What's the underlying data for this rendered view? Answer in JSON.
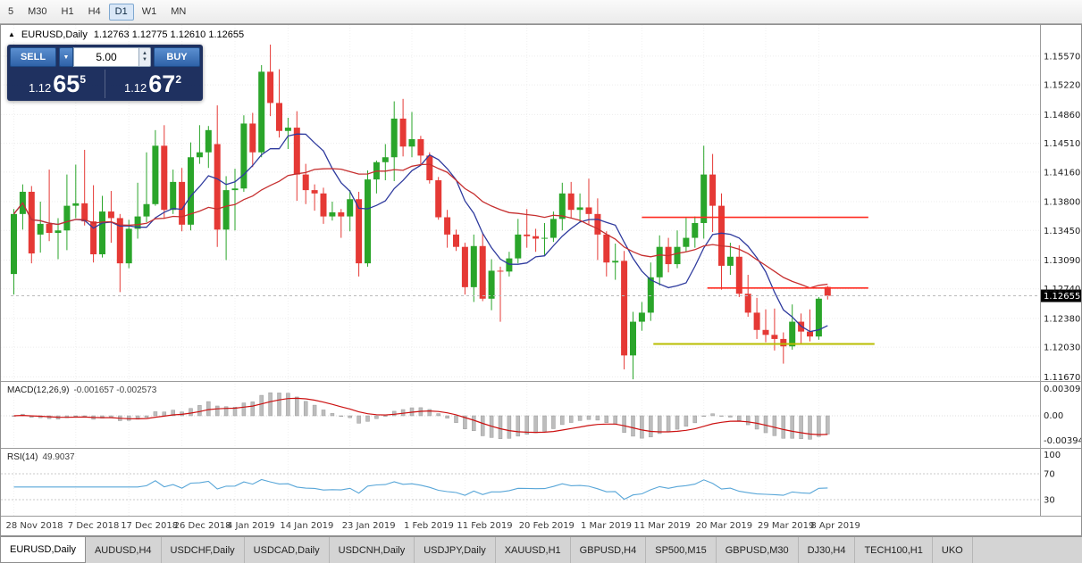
{
  "toolbar": {
    "timeframes": [
      {
        "label": "5",
        "active": false
      },
      {
        "label": "M30",
        "active": false
      },
      {
        "label": "H1",
        "active": false
      },
      {
        "label": "H4",
        "active": false
      },
      {
        "label": "D1",
        "active": true
      },
      {
        "label": "W1",
        "active": false
      },
      {
        "label": "MN",
        "active": false
      }
    ]
  },
  "icons": {
    "symbol_arrow": "▲",
    "volume_dropdown": "▼",
    "stepper_up": "▲",
    "stepper_down": "▼"
  },
  "trade_panel": {
    "sell_label": "SELL",
    "buy_label": "BUY",
    "volume": "5.00",
    "sell_small": "1.12",
    "sell_big": "65",
    "sell_sup": "5",
    "buy_small": "1.12",
    "buy_big": "67",
    "buy_sup": "2"
  },
  "chart_data": {
    "type": "candlestick",
    "symbol": "EURUSD",
    "timeframe": "Daily",
    "header": {
      "symbol": "EURUSD,Daily",
      "ohlc": "1.12763 1.12775 1.12610 1.12655"
    },
    "y_range": {
      "min": 1.1163,
      "max": 1.1584
    },
    "colors": {
      "up": "#2aa52a",
      "down": "#e53935"
    },
    "y_axis_labels": [
      "1.15570",
      "1.15220",
      "1.14860",
      "1.14510",
      "1.14160",
      "1.13800",
      "1.13450",
      "1.13090",
      "1.12740",
      "1.12380",
      "1.12030",
      "1.11670"
    ],
    "x_labels": [
      {
        "label": "28 Nov 2018",
        "i": 0
      },
      {
        "label": "7 Dec 2018",
        "i": 7
      },
      {
        "label": "17 Dec 2018",
        "i": 13
      },
      {
        "label": "26 Dec 2018",
        "i": 19
      },
      {
        "label": "4 Jan 2019",
        "i": 25
      },
      {
        "label": "14 Jan 2019",
        "i": 31
      },
      {
        "label": "23 Jan 2019",
        "i": 38
      },
      {
        "label": "1 Feb 2019",
        "i": 45
      },
      {
        "label": "11 Feb 2019",
        "i": 51
      },
      {
        "label": "20 Feb 2019",
        "i": 58
      },
      {
        "label": "1 Mar 2019",
        "i": 65
      },
      {
        "label": "11 Mar 2019",
        "i": 71
      },
      {
        "label": "20 Mar 2019",
        "i": 78
      },
      {
        "label": "29 Mar 2019",
        "i": 85
      },
      {
        "label": "8 Apr 2019",
        "i": 91
      }
    ],
    "candles": [
      [
        1.1292,
        1.1371,
        1.1267,
        1.1365
      ],
      [
        1.1365,
        1.1401,
        1.1346,
        1.1392
      ],
      [
        1.1392,
        1.1399,
        1.1305,
        1.1317
      ],
      [
        1.134,
        1.138,
        1.1318,
        1.1353
      ],
      [
        1.1353,
        1.1419,
        1.1332,
        1.1342
      ],
      [
        1.1342,
        1.136,
        1.131,
        1.1345
      ],
      [
        1.1345,
        1.1413,
        1.1321,
        1.1375
      ],
      [
        1.1375,
        1.1425,
        1.136,
        1.1378
      ],
      [
        1.1378,
        1.1443,
        1.1351,
        1.1356
      ],
      [
        1.1356,
        1.14,
        1.1306,
        1.1316
      ],
      [
        1.1316,
        1.1387,
        1.1312,
        1.1368
      ],
      [
        1.1368,
        1.1393,
        1.133,
        1.136
      ],
      [
        1.136,
        1.1365,
        1.127,
        1.1305
      ],
      [
        1.1305,
        1.1358,
        1.1299,
        1.1347
      ],
      [
        1.1347,
        1.1403,
        1.1335,
        1.1362
      ],
      [
        1.1362,
        1.144,
        1.1355,
        1.1377
      ],
      [
        1.1377,
        1.1467,
        1.1375,
        1.1448
      ],
      [
        1.1448,
        1.1473,
        1.1359,
        1.137
      ],
      [
        1.137,
        1.1419,
        1.1365,
        1.1404
      ],
      [
        1.1404,
        1.1421,
        1.1344,
        1.1352
      ],
      [
        1.1352,
        1.1452,
        1.1345,
        1.1434
      ],
      [
        1.1434,
        1.1473,
        1.1426,
        1.144
      ],
      [
        1.144,
        1.1472,
        1.1421,
        1.1467
      ],
      [
        1.145,
        1.1497,
        1.1325,
        1.1346
      ],
      [
        1.1346,
        1.1411,
        1.1309,
        1.1394
      ],
      [
        1.1394,
        1.142,
        1.1345,
        1.1396
      ],
      [
        1.1396,
        1.1485,
        1.1392,
        1.1475
      ],
      [
        1.1475,
        1.1488,
        1.1422,
        1.144
      ],
      [
        1.144,
        1.1546,
        1.1434,
        1.1538
      ],
      [
        1.1538,
        1.1571,
        1.1484,
        1.15
      ],
      [
        1.15,
        1.1541,
        1.1458,
        1.1466
      ],
      [
        1.1466,
        1.1482,
        1.1444,
        1.147
      ],
      [
        1.147,
        1.149,
        1.1381,
        1.1413
      ],
      [
        1.1413,
        1.1426,
        1.1377,
        1.1394
      ],
      [
        1.1394,
        1.1401,
        1.1369,
        1.139
      ],
      [
        1.139,
        1.1397,
        1.1353,
        1.1362
      ],
      [
        1.1362,
        1.138,
        1.1357,
        1.1367
      ],
      [
        1.1367,
        1.1371,
        1.1336,
        1.1362
      ],
      [
        1.1362,
        1.1394,
        1.1344,
        1.1383
      ],
      [
        1.1383,
        1.1392,
        1.1289,
        1.1305
      ],
      [
        1.1305,
        1.1418,
        1.1301,
        1.1407
      ],
      [
        1.1407,
        1.143,
        1.139,
        1.1428
      ],
      [
        1.1428,
        1.145,
        1.1406,
        1.1434
      ],
      [
        1.1434,
        1.1502,
        1.1405,
        1.1481
      ],
      [
        1.1481,
        1.1505,
        1.1435,
        1.1447
      ],
      [
        1.1447,
        1.1489,
        1.1434,
        1.1456
      ],
      [
        1.1456,
        1.146,
        1.1424,
        1.1436
      ],
      [
        1.1436,
        1.144,
        1.1402,
        1.1406
      ],
      [
        1.1406,
        1.141,
        1.1358,
        1.1361
      ],
      [
        1.1361,
        1.137,
        1.1324,
        1.134
      ],
      [
        1.134,
        1.1346,
        1.132,
        1.1325
      ],
      [
        1.1325,
        1.133,
        1.1267,
        1.1276
      ],
      [
        1.1276,
        1.134,
        1.1258,
        1.1326
      ],
      [
        1.1326,
        1.1341,
        1.1259,
        1.1262
      ],
      [
        1.1262,
        1.131,
        1.1248,
        1.1296
      ],
      [
        1.1296,
        1.1301,
        1.1234,
        1.1295
      ],
      [
        1.1295,
        1.1319,
        1.1289,
        1.1311
      ],
      [
        1.1311,
        1.1359,
        1.1305,
        1.134
      ],
      [
        1.134,
        1.1371,
        1.1324,
        1.1338
      ],
      [
        1.1338,
        1.1347,
        1.1319,
        1.1335
      ],
      [
        1.1335,
        1.1354,
        1.1315,
        1.1336
      ],
      [
        1.1336,
        1.1368,
        1.1331,
        1.1359
      ],
      [
        1.1359,
        1.1403,
        1.1345,
        1.139
      ],
      [
        1.139,
        1.1404,
        1.136,
        1.137
      ],
      [
        1.137,
        1.139,
        1.1355,
        1.1373
      ],
      [
        1.1373,
        1.1408,
        1.1352,
        1.1365
      ],
      [
        1.1365,
        1.1384,
        1.1309,
        1.134
      ],
      [
        1.134,
        1.1344,
        1.1289,
        1.1306
      ],
      [
        1.1306,
        1.1329,
        1.1285,
        1.1308
      ],
      [
        1.1308,
        1.132,
        1.1176,
        1.1193
      ],
      [
        1.1193,
        1.1246,
        1.1164,
        1.1234
      ],
      [
        1.1234,
        1.1258,
        1.1223,
        1.1245
      ],
      [
        1.1245,
        1.1306,
        1.1235,
        1.1288
      ],
      [
        1.1288,
        1.1339,
        1.1278,
        1.1325
      ],
      [
        1.1325,
        1.1336,
        1.1294,
        1.1304
      ],
      [
        1.1304,
        1.1345,
        1.1299,
        1.1325
      ],
      [
        1.1325,
        1.136,
        1.1319,
        1.1336
      ],
      [
        1.1336,
        1.1362,
        1.1324,
        1.1354
      ],
      [
        1.1354,
        1.1448,
        1.1335,
        1.1413
      ],
      [
        1.1413,
        1.1438,
        1.1343,
        1.1375
      ],
      [
        1.1375,
        1.139,
        1.1273,
        1.1302
      ],
      [
        1.1302,
        1.133,
        1.1291,
        1.1313
      ],
      [
        1.1313,
        1.1327,
        1.1264,
        1.1268
      ],
      [
        1.1268,
        1.1291,
        1.124,
        1.1245
      ],
      [
        1.1245,
        1.1263,
        1.1213,
        1.1224
      ],
      [
        1.1224,
        1.1249,
        1.1209,
        1.1218
      ],
      [
        1.1218,
        1.125,
        1.1199,
        1.1213
      ],
      [
        1.1213,
        1.1221,
        1.1183,
        1.1204
      ],
      [
        1.1204,
        1.1255,
        1.12,
        1.1234
      ],
      [
        1.1234,
        1.1244,
        1.1206,
        1.1222
      ],
      [
        1.1222,
        1.1249,
        1.121,
        1.1216
      ],
      [
        1.1216,
        1.1264,
        1.1212,
        1.1262
      ],
      [
        1.12763,
        1.12775,
        1.1261,
        1.12655
      ]
    ],
    "moving_averages": [
      {
        "period": 8,
        "color": "#2f3b9e"
      },
      {
        "period": 22,
        "color": "#c62f2f"
      }
    ],
    "hlines": [
      {
        "price": 1.1361,
        "i1": 71,
        "i2": 96.6,
        "color": "#ff2b20",
        "width": 1.6
      },
      {
        "price": 1.1275,
        "i1": 78.4,
        "i2": 96.6,
        "color": "#ff2b20",
        "width": 1.6
      },
      {
        "price": 1.1207,
        "i1": 72.3,
        "i2": 97.3,
        "color": "#b8bd00",
        "width": 2
      }
    ],
    "price_line": {
      "value": 1.12655,
      "label": "1.12655"
    },
    "macd": {
      "label": "MACD(12,26,9)",
      "values_text": "-0.001657 -0.002573",
      "fast": 12,
      "slow": 26,
      "signal": 9,
      "axis_labels": [
        "0.003095",
        "0.00",
        "-0.003947"
      ],
      "hist_color": "#bdbdbd",
      "signal_color": "#cc1111"
    },
    "rsi": {
      "label": "RSI(14)",
      "value_text": "49.9037",
      "period": 14,
      "levels": [
        70,
        30
      ],
      "axis_labels": [
        "100",
        "70",
        "30"
      ],
      "color": "#58a6d8"
    }
  },
  "tabs": [
    {
      "label": "EURUSD,Daily",
      "active": true
    },
    {
      "label": "AUDUSD,H4",
      "active": false
    },
    {
      "label": "USDCHF,Daily",
      "active": false
    },
    {
      "label": "USDCAD,Daily",
      "active": false
    },
    {
      "label": "USDCNH,Daily",
      "active": false
    },
    {
      "label": "USDJPY,Daily",
      "active": false
    },
    {
      "label": "XAUUSD,H1",
      "active": false
    },
    {
      "label": "GBPUSD,H4",
      "active": false
    },
    {
      "label": "SP500,M15",
      "active": false
    },
    {
      "label": "GBPUSD,M30",
      "active": false
    },
    {
      "label": "DJ30,H4",
      "active": false
    },
    {
      "label": "TECH100,H1",
      "active": false
    },
    {
      "label": "UKO",
      "active": false
    }
  ]
}
